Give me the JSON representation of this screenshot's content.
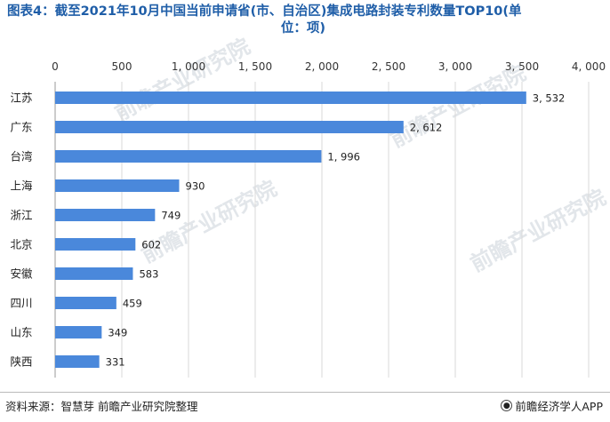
{
  "title_line1": "图表4：截至2021年10月中国当前申请省(市、自治区)集成电路封装专利数量TOP10(单",
  "title_line2": "位：项)",
  "source": "资料来源：智慧芽 前瞻产业研究院整理",
  "brand": "前瞻经济学人APP",
  "brand_icon": "brand-logo-icon",
  "watermark_text": "前瞻产业研究院",
  "colors": {
    "bar": "#4a88db",
    "title": "#1f5ea8",
    "grid": "#d9d9d9"
  },
  "chart_data": {
    "type": "bar",
    "orientation": "horizontal",
    "categories": [
      "江苏",
      "广东",
      "台湾",
      "上海",
      "浙江",
      "北京",
      "安徽",
      "四川",
      "山东",
      "陕西"
    ],
    "values": [
      3532,
      2612,
      1996,
      930,
      749,
      602,
      583,
      459,
      349,
      331
    ],
    "value_labels": [
      "3, 532",
      "2, 612",
      "1, 996",
      "930",
      "749",
      "602",
      "583",
      "459",
      "349",
      "331"
    ],
    "xlim": [
      0,
      4000
    ],
    "xticks": [
      0,
      500,
      1000,
      1500,
      2000,
      2500,
      3000,
      3500,
      4000
    ],
    "xtick_labels": [
      "0",
      "500",
      "1, 000",
      "1, 500",
      "2, 000",
      "2, 500",
      "3, 000",
      "3, 500",
      "4, 000"
    ],
    "axis_position": "top",
    "grid": true
  }
}
